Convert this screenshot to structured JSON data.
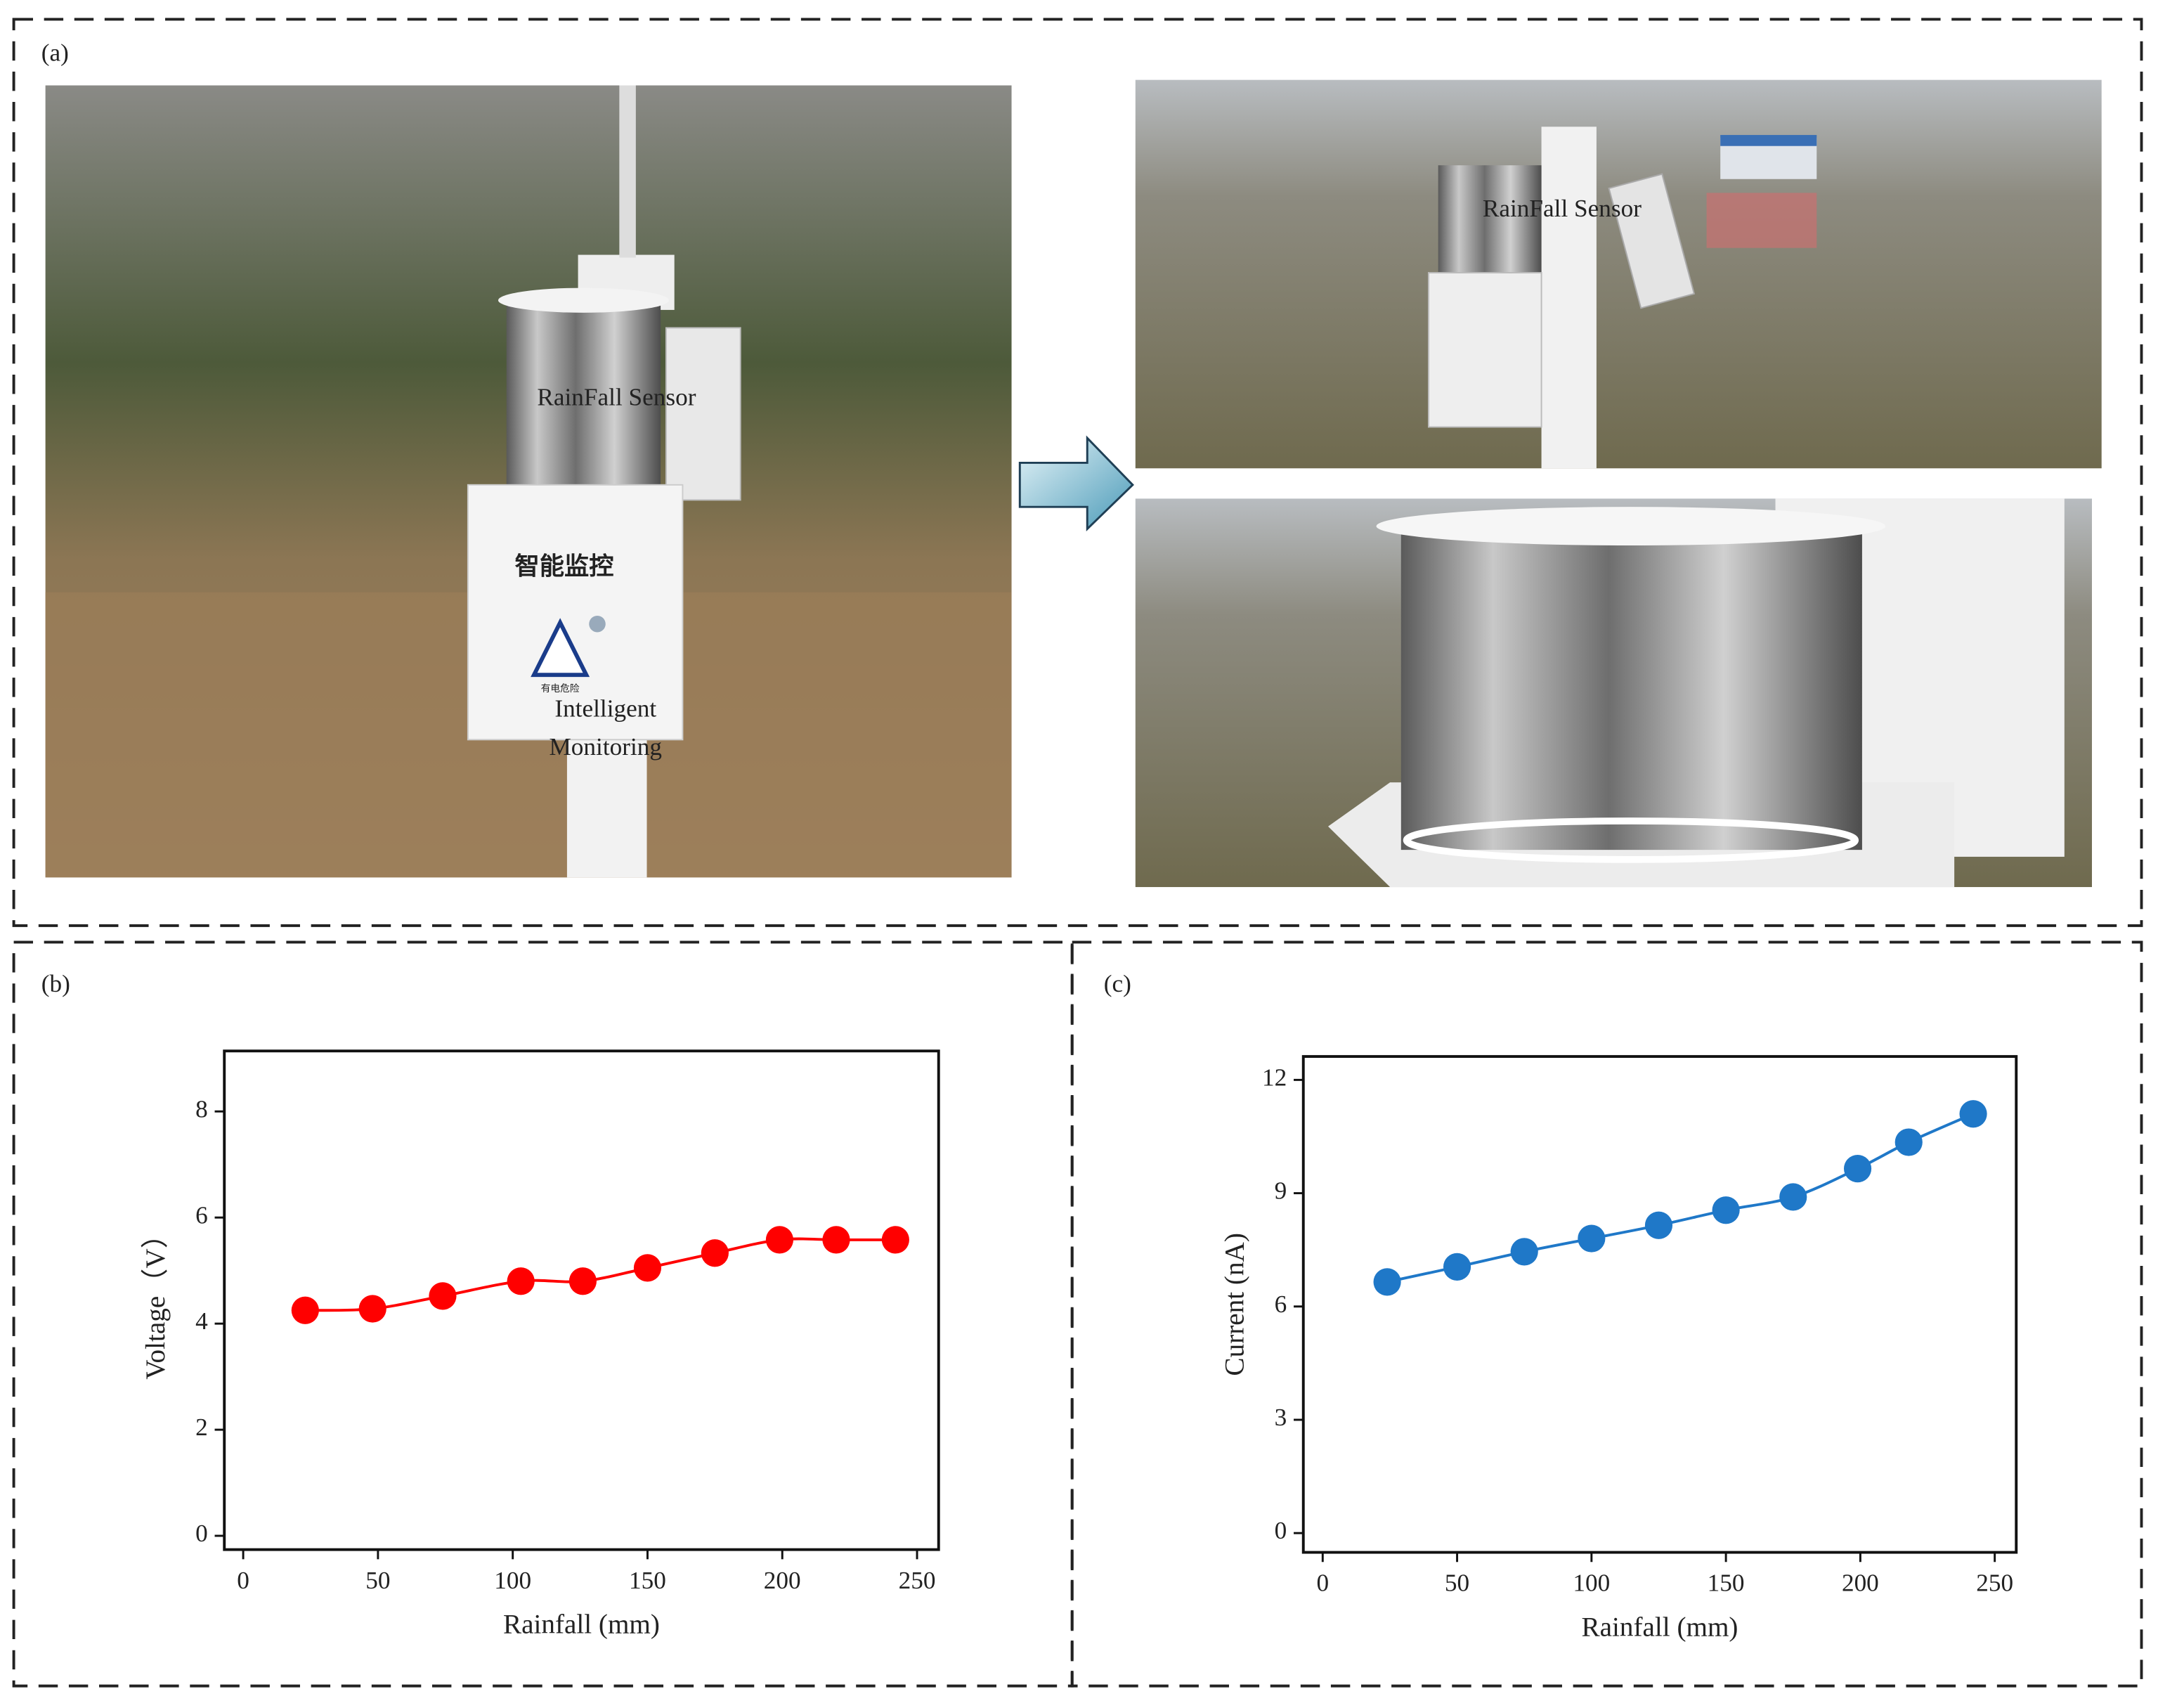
{
  "panels": {
    "a": "(a)",
    "b": "(b)",
    "c": "(c)"
  },
  "photo_labels": {
    "main_sensor": "RainFall Sensor",
    "box_text": "智能监控",
    "warning": "有电危险",
    "monitoring_line1": "Intelligent",
    "monitoring_line2": "Monitoring",
    "top_sensor": "RainFall Sensor"
  },
  "chart_data": [
    {
      "type": "line",
      "xlabel": "Rainfall (mm)",
      "ylabel": "Voltage（V）",
      "x": [
        23,
        48,
        74,
        103,
        126,
        150,
        175,
        199,
        220,
        242
      ],
      "series": [
        {
          "color": "#ff0000",
          "values": [
            4.25,
            4.28,
            4.52,
            4.8,
            4.8,
            5.05,
            5.33,
            5.58,
            5.58,
            5.58
          ]
        }
      ],
      "xlim": [
        -7,
        258
      ],
      "ylim": [
        -0.26,
        9.14
      ],
      "xticks": [
        0,
        50,
        100,
        150,
        200,
        250
      ],
      "yticks": [
        0,
        2,
        4,
        6,
        8
      ]
    },
    {
      "type": "line",
      "xlabel": "Rainfall (mm)",
      "ylabel": "Current (nA)",
      "x": [
        24,
        50,
        75,
        100,
        125,
        150,
        175,
        199,
        218,
        242
      ],
      "series": [
        {
          "color": "#1f78c8",
          "values": [
            6.65,
            7.05,
            7.45,
            7.8,
            8.15,
            8.55,
            8.9,
            9.65,
            10.35,
            11.1
          ]
        }
      ],
      "xlim": [
        -7.2,
        258
      ],
      "ylim": [
        -0.51,
        12.62
      ],
      "xticks": [
        0,
        50,
        100,
        150,
        200,
        250
      ],
      "yticks": [
        0,
        3,
        6,
        9,
        12
      ]
    }
  ]
}
